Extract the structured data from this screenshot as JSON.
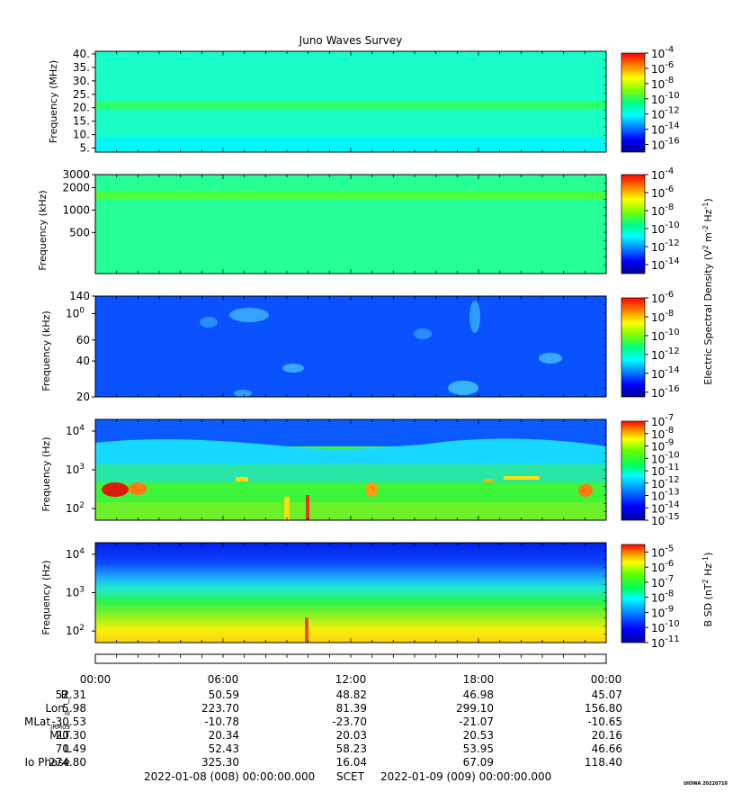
{
  "title": "Juno Waves Survey",
  "footer": {
    "start": "2022-01-08 (008) 00:00:00.000",
    "frame": "SCET",
    "end": "2022-01-09 (009) 00:00:00.000",
    "credit": "UIOWA 20220710"
  },
  "colorbar_titles": {
    "electric": "Electric Spectral Density (V2 m-2 Hz-1)",
    "magnetic": "B SD (nT2 Hz-1)"
  },
  "chart_data": [
    {
      "type": "heatmap",
      "ylabel": "Frequency (MHz)",
      "yscale": "linear",
      "ylim": [
        3.5,
        41
      ],
      "yticks": [
        "40.",
        "35.",
        "30.",
        "25.",
        "20.",
        "15.",
        "10.",
        "5."
      ],
      "ytick_values": [
        40,
        35,
        30,
        25,
        20,
        15,
        10,
        5
      ],
      "colorbar": {
        "ticks": [
          "-4",
          "-6",
          "-8",
          "-10",
          "-12",
          "-14",
          "-16"
        ],
        "range": [
          -17,
          -4
        ]
      },
      "features": [
        {
          "kind": "band",
          "center": 21,
          "width": 2,
          "level": -10.5
        }
      ],
      "background_level": -11.3
    },
    {
      "type": "heatmap",
      "ylabel": "Frequency (kHz)",
      "yscale": "log",
      "ylim": [
        140,
        3000
      ],
      "yticks": [
        "3000",
        "2000",
        "1000",
        "500"
      ],
      "ytick_values": [
        3000,
        2000,
        1000,
        500
      ],
      "colorbar": {
        "ticks": [
          "-4",
          "-6",
          "-8",
          "-10",
          "-12",
          "-14"
        ],
        "range": [
          -15,
          -4
        ]
      },
      "features": [
        {
          "kind": "band",
          "center": 1700,
          "width": 300,
          "level": -9.6
        }
      ],
      "background_level": -10.4
    },
    {
      "type": "heatmap",
      "ylabel": "Frequency (kHz)",
      "yscale": "log",
      "ylim": [
        20,
        140
      ],
      "yticks": [
        "140",
        "100",
        "60",
        "40",
        "20"
      ],
      "ytick_values": [
        140,
        100,
        60,
        40,
        20
      ],
      "colorbar": {
        "ticks": [
          "-6",
          "-8",
          "-10",
          "-12",
          "-14",
          "-16"
        ],
        "range": [
          -16.5,
          -6
        ]
      },
      "background_level": -14.6
    },
    {
      "type": "heatmap",
      "ylabel": "Frequency (Hz)",
      "yscale": "log",
      "ylim": [
        50,
        20000
      ],
      "yticks": [
        "104",
        "103",
        "102"
      ],
      "ytick_values": [
        10000,
        1000,
        100
      ],
      "colorbar": {
        "ticks": [
          "-7",
          "-8",
          "-9",
          "-10",
          "-11",
          "-12",
          "-13",
          "-14",
          "-15"
        ],
        "range": [
          -15,
          -7
        ]
      },
      "background_level": -11
    },
    {
      "type": "heatmap",
      "ylabel": "Frequency (Hz)",
      "yscale": "log",
      "ylim": [
        50,
        20000
      ],
      "yticks": [
        "104",
        "103",
        "102"
      ],
      "ytick_values": [
        10000,
        1000,
        100
      ],
      "colorbar": {
        "ticks": [
          "-5",
          "-6",
          "-7",
          "-8",
          "-9",
          "-10",
          "-11"
        ],
        "range": [
          -11,
          -4.5
        ]
      },
      "background_level": -9
    }
  ],
  "colorbar_tick_base": "10",
  "time_axis": {
    "labels": [
      "00:00",
      "06:00",
      "12:00",
      "18:00",
      "00:00"
    ],
    "hours": [
      0,
      6,
      12,
      18,
      24
    ]
  },
  "ephemeris": [
    {
      "label": "RJ",
      "values": [
        "52.31",
        "50.59",
        "48.82",
        "46.98",
        "45.07"
      ]
    },
    {
      "label": "LonIII",
      "values": [
        "5.98",
        "223.70",
        "81.39",
        "299.10",
        "156.80"
      ]
    },
    {
      "label": "MLatJRM09",
      "values": [
        "-30.53",
        "-10.78",
        "-23.70",
        "-21.07",
        "-10.65"
      ]
    },
    {
      "label": "MLT",
      "values": [
        "20.30",
        "20.34",
        "20.03",
        "20.53",
        "20.16"
      ]
    },
    {
      "label": "L",
      "values": [
        "70.49",
        "52.43",
        "58.23",
        "53.95",
        "46.66"
      ]
    },
    {
      "label": "Io Phase",
      "values": [
        "274.80",
        "325.30",
        "16.04",
        "67.09",
        "118.40"
      ]
    }
  ]
}
